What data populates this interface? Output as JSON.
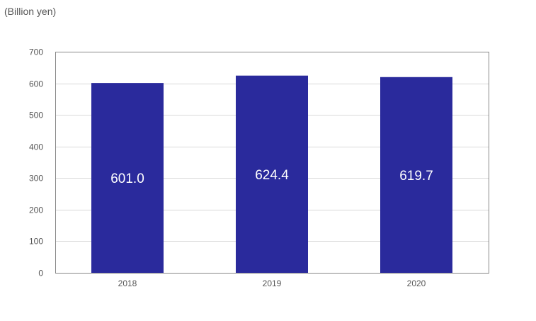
{
  "chart_data": {
    "type": "bar",
    "unit_label": "(Billion yen)",
    "categories": [
      "2018",
      "2019",
      "2020"
    ],
    "values": [
      601.0,
      624.4,
      619.7
    ],
    "data_labels": [
      "601.0",
      "624.4",
      "619.7"
    ],
    "ylim": [
      0,
      700
    ],
    "yticks": [
      0,
      100,
      200,
      300,
      400,
      500,
      600,
      700
    ],
    "grid": true,
    "legend": "none",
    "bar_color": "#2a2a9c"
  }
}
